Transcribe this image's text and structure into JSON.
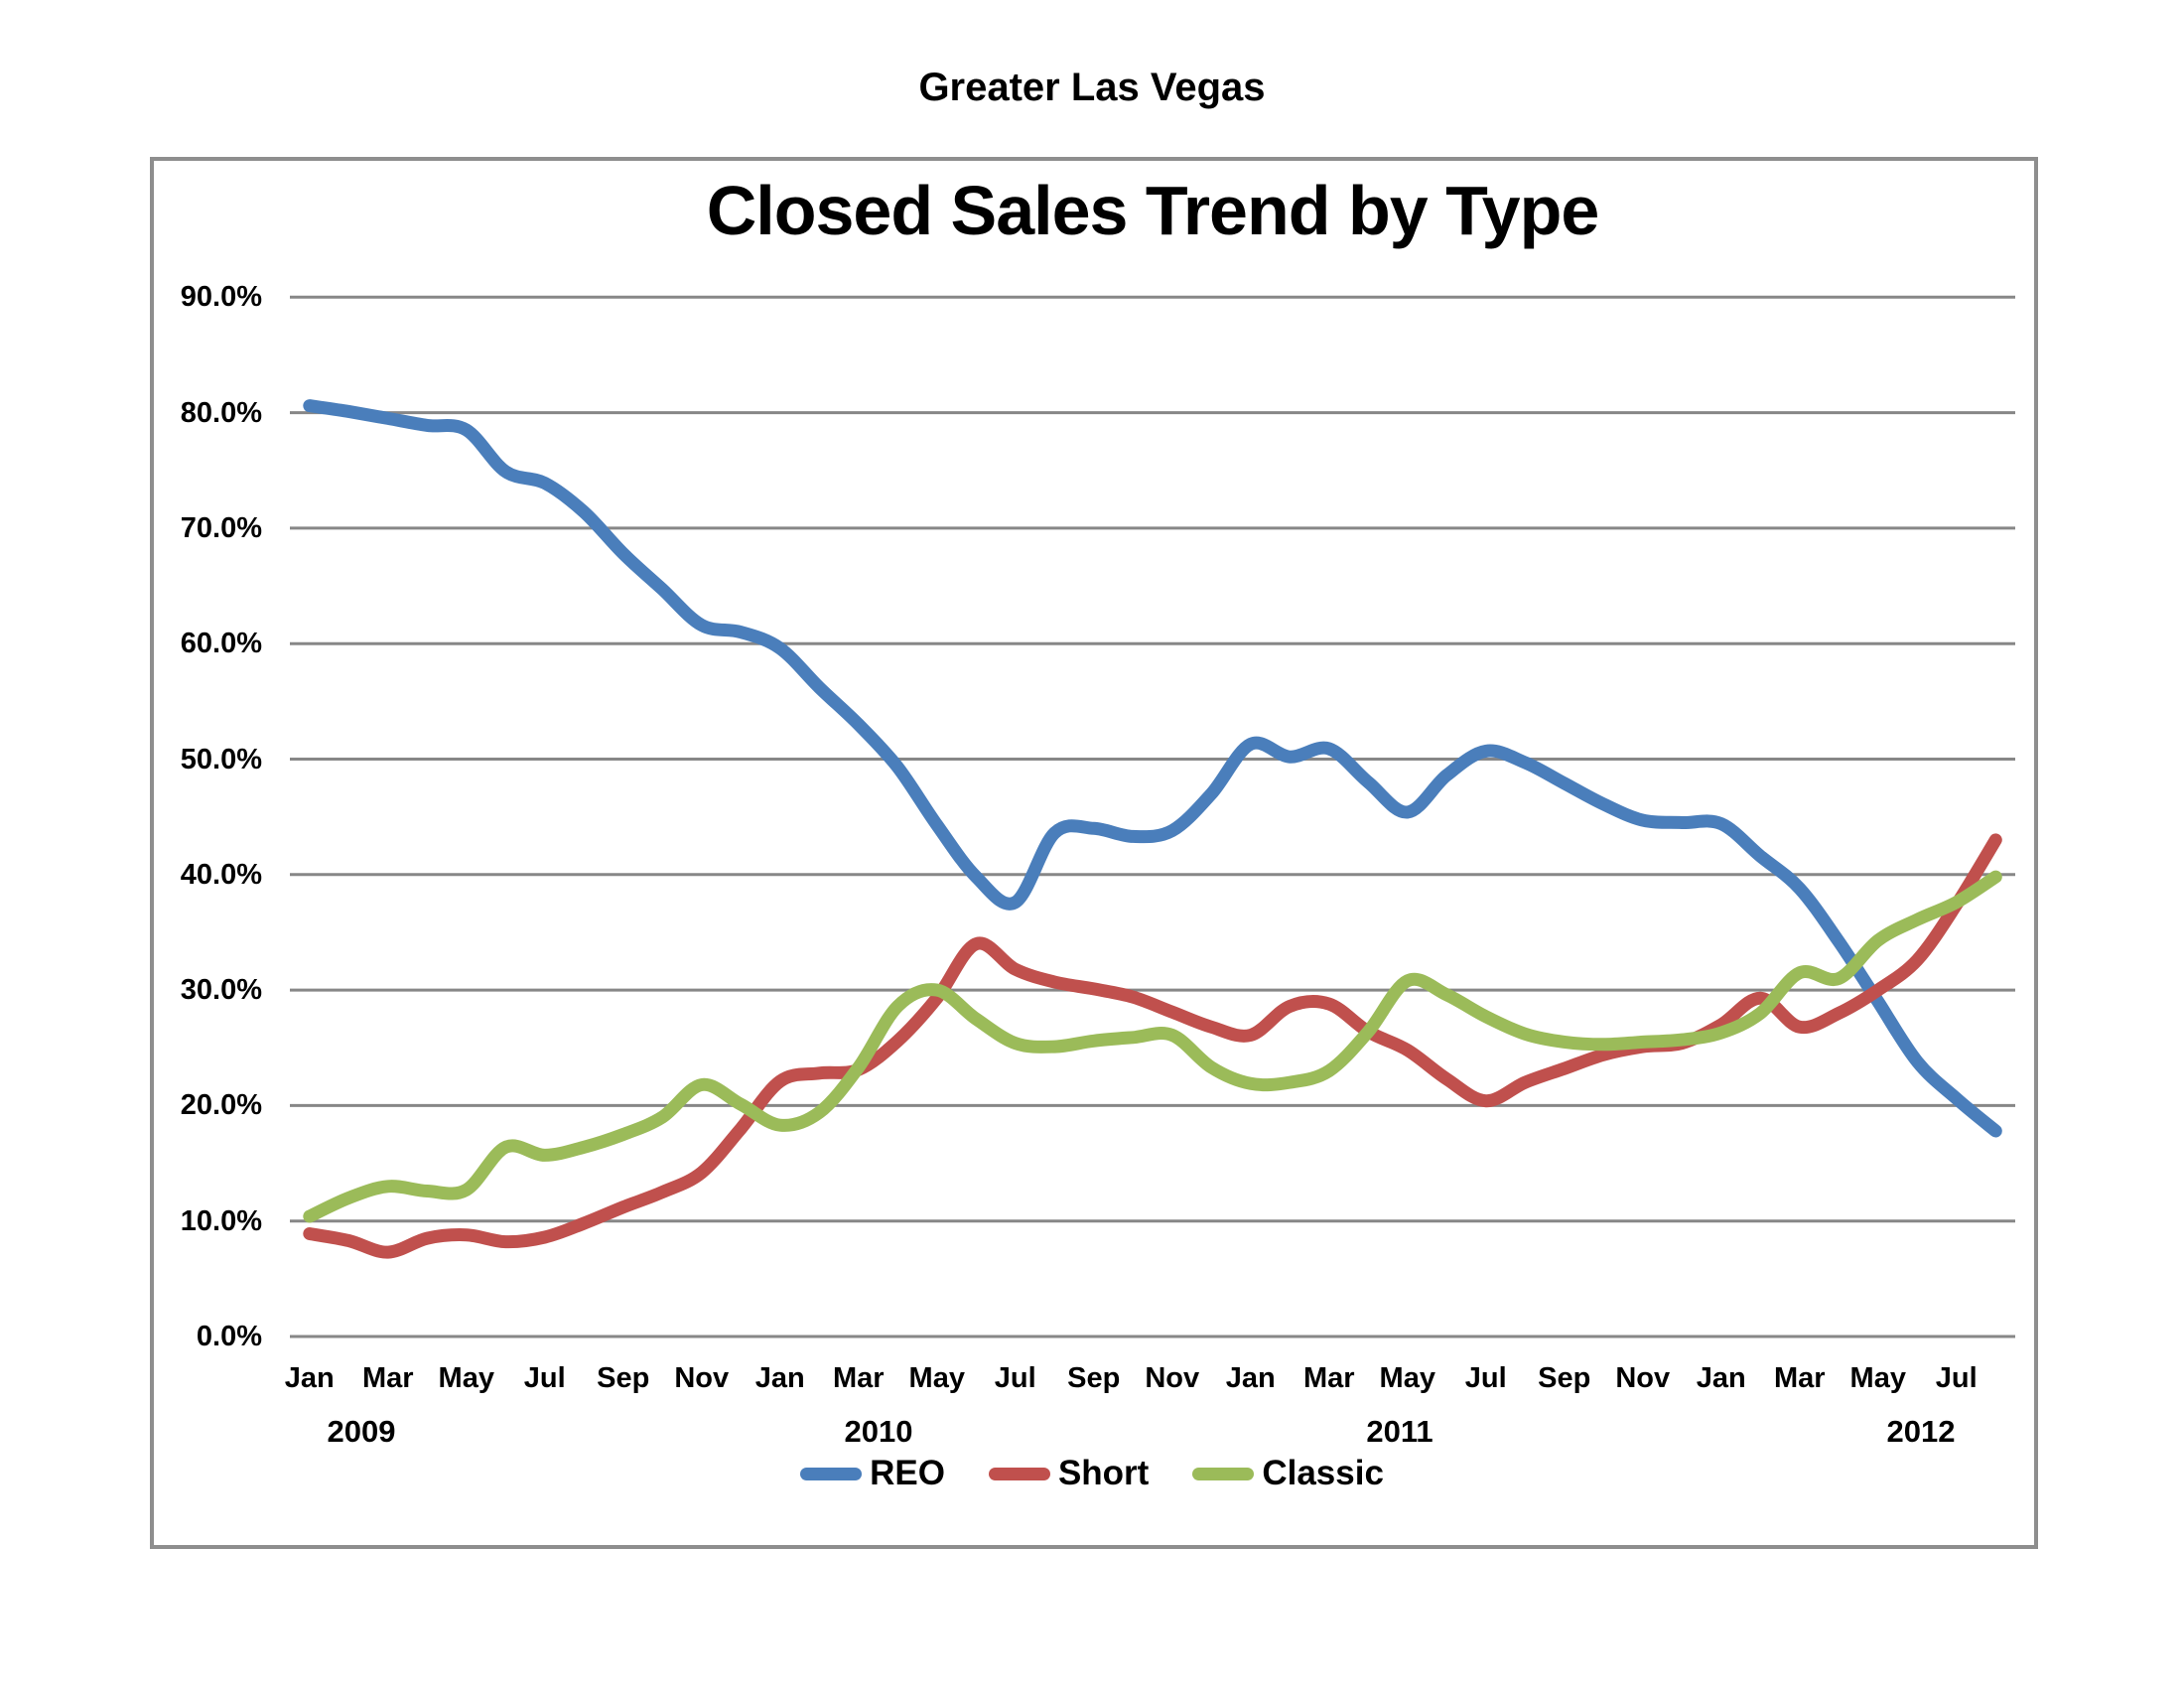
{
  "header": {
    "title": "Greater Las Vegas"
  },
  "chart": {
    "title": "Closed Sales Trend by Type"
  },
  "chart_data": {
    "type": "line",
    "title": "Closed Sales Trend by Type",
    "line_style": "smooth",
    "grid": true,
    "legend_position": "bottom",
    "ylim": [
      0,
      90
    ],
    "y_tick_step": 10,
    "y_tick_labels": [
      "0.0%",
      "10.0%",
      "20.0%",
      "30.0%",
      "40.0%",
      "50.0%",
      "60.0%",
      "70.0%",
      "80.0%",
      "90.0%"
    ],
    "x_tick_labels": [
      "Jan",
      "Mar",
      "May",
      "Jul",
      "Sep",
      "Nov",
      "Jan",
      "Mar",
      "May",
      "Jul",
      "Sep",
      "Nov",
      "Jan",
      "Mar",
      "May",
      "Jul",
      "Sep",
      "Nov",
      "Jan",
      "Mar",
      "May",
      "Jul"
    ],
    "year_labels": [
      "2009",
      "2010",
      "2011",
      "2012"
    ],
    "x": [
      "Jan 2009",
      "Feb 2009",
      "Mar 2009",
      "Apr 2009",
      "May 2009",
      "Jun 2009",
      "Jul 2009",
      "Aug 2009",
      "Sep 2009",
      "Oct 2009",
      "Nov 2009",
      "Dec 2009",
      "Jan 2010",
      "Feb 2010",
      "Mar 2010",
      "Apr 2010",
      "May 2010",
      "Jun 2010",
      "Jul 2010",
      "Aug 2010",
      "Sep 2010",
      "Oct 2010",
      "Nov 2010",
      "Dec 2010",
      "Jan 2011",
      "Feb 2011",
      "Mar 2011",
      "Apr 2011",
      "May 2011",
      "Jun 2011",
      "Jul 2011",
      "Aug 2011",
      "Sep 2011",
      "Oct 2011",
      "Nov 2011",
      "Dec 2011",
      "Jan 2012",
      "Feb 2012",
      "Mar 2012",
      "Apr 2012",
      "May 2012",
      "Jun 2012",
      "Jul 2012",
      "Aug 2012"
    ],
    "series": [
      {
        "name": "REO",
        "color": "#4a7ebb",
        "values": [
          80.6,
          80.1,
          79.5,
          78.9,
          78.5,
          74.9,
          73.9,
          71.4,
          67.8,
          64.7,
          61.6,
          61.0,
          59.6,
          56.2,
          53.0,
          49.3,
          44.3,
          39.8,
          37.6,
          43.6,
          44.0,
          43.3,
          43.8,
          47.0,
          51.3,
          50.2,
          50.9,
          48.0,
          45.4,
          48.6,
          50.7,
          49.7,
          47.9,
          46.1,
          44.7,
          44.5,
          44.4,
          41.6,
          38.8,
          34.2,
          29.0,
          23.8,
          20.6,
          17.8
        ]
      },
      {
        "name": "Short",
        "color": "#c0504d",
        "values": [
          8.9,
          8.3,
          7.3,
          8.5,
          8.8,
          8.2,
          8.6,
          9.8,
          11.2,
          12.5,
          14.2,
          18.0,
          22.1,
          22.8,
          23.1,
          25.6,
          29.3,
          34.0,
          31.8,
          30.7,
          30.1,
          29.4,
          28.1,
          26.8,
          26.1,
          28.6,
          28.8,
          26.4,
          24.8,
          22.3,
          20.4,
          22.0,
          23.2,
          24.4,
          25.1,
          25.4,
          27.0,
          29.3,
          26.8,
          28.0,
          30.0,
          32.6,
          37.4,
          43.0
        ]
      },
      {
        "name": "Classic",
        "color": "#9bbb59",
        "values": [
          10.4,
          12.0,
          13.0,
          12.6,
          12.7,
          16.4,
          15.7,
          16.4,
          17.5,
          19.0,
          21.8,
          20.1,
          18.3,
          19.4,
          23.3,
          28.6,
          30.0,
          27.5,
          25.4,
          25.1,
          25.6,
          25.9,
          26.1,
          23.3,
          21.9,
          22.0,
          23.0,
          26.4,
          30.8,
          29.6,
          27.7,
          26.2,
          25.5,
          25.3,
          25.5,
          25.7,
          26.3,
          28.0,
          31.5,
          31.0,
          34.3,
          36.1,
          37.6,
          39.8
        ]
      }
    ],
    "colors": {
      "gridline": "#878787",
      "frame": "#8e8e8e",
      "text": "#000000"
    }
  }
}
